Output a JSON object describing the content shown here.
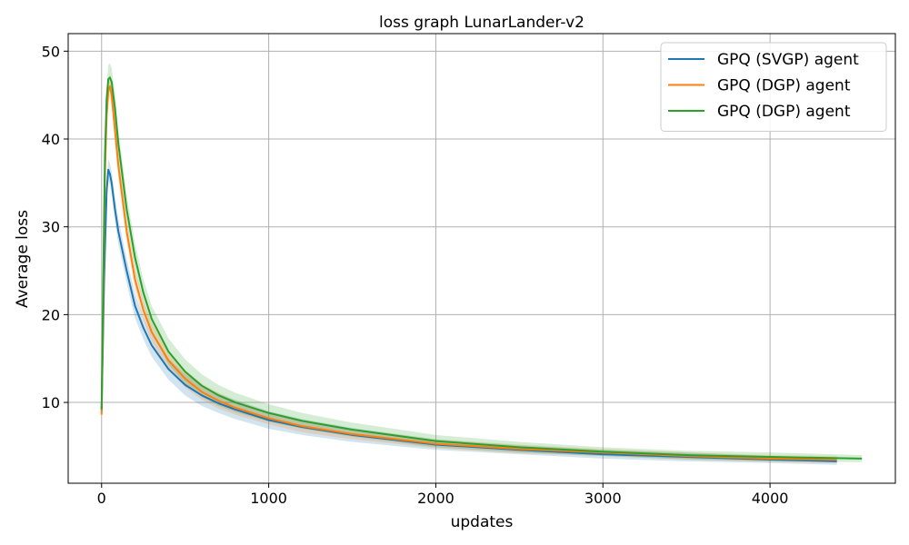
{
  "chart_data": {
    "type": "line",
    "title": "loss graph LunarLander-v2",
    "xlabel": "updates",
    "ylabel": "Average loss",
    "xlim": [
      -200,
      4750
    ],
    "ylim": [
      0.8,
      52
    ],
    "xticks": [
      0,
      1000,
      2000,
      3000,
      4000
    ],
    "xtick_labels": [
      "0",
      "1000",
      "2000",
      "3000",
      "4000"
    ],
    "yticks": [
      10,
      20,
      30,
      40,
      50
    ],
    "ytick_labels": [
      "10",
      "20",
      "30",
      "40",
      "50"
    ],
    "grid": true,
    "legend_position": "top-right",
    "series": [
      {
        "name": "GPQ (SVGP) agent",
        "color": "#1f77b4",
        "x": [
          0,
          15,
          30,
          40,
          50,
          60,
          80,
          100,
          150,
          200,
          250,
          300,
          400,
          500,
          600,
          700,
          800,
          1000,
          1200,
          1500,
          2000,
          2500,
          3000,
          3500,
          4000,
          4400
        ],
        "y": [
          9.0,
          24.0,
          34.0,
          36.5,
          36.0,
          35.0,
          32.0,
          29.5,
          25.0,
          21.0,
          18.5,
          16.5,
          13.8,
          12.0,
          10.8,
          9.9,
          9.2,
          8.0,
          7.2,
          6.3,
          5.2,
          4.6,
          4.1,
          3.8,
          3.5,
          3.3
        ],
        "band": [
          0.3,
          0.6,
          1.0,
          1.2,
          1.2,
          1.3,
          1.4,
          1.4,
          1.4,
          1.4,
          1.3,
          1.3,
          1.2,
          1.2,
          1.2,
          1.1,
          1.1,
          1.0,
          0.9,
          0.8,
          0.6,
          0.5,
          0.5,
          0.5,
          0.4,
          0.4
        ]
      },
      {
        "name": "GPQ (DGP) agent",
        "color": "#ff7f0e",
        "x": [
          0,
          10,
          20,
          30,
          40,
          50,
          60,
          80,
          100,
          150,
          200,
          250,
          300,
          400,
          500,
          600,
          700,
          800,
          1000,
          1200,
          1500,
          2000,
          2500,
          3000,
          3500,
          4000,
          4400
        ],
        "y": [
          8.6,
          22.0,
          36.0,
          42.5,
          45.5,
          46.0,
          45.0,
          41.0,
          37.0,
          29.5,
          24.0,
          20.5,
          18.0,
          14.8,
          12.7,
          11.2,
          10.2,
          9.4,
          8.2,
          7.3,
          6.4,
          5.3,
          4.7,
          4.3,
          3.9,
          3.6,
          3.5
        ],
        "band": [
          0.2,
          0.8,
          1.2,
          1.4,
          1.4,
          1.4,
          1.4,
          1.3,
          1.3,
          1.2,
          1.2,
          1.1,
          1.1,
          1.0,
          1.0,
          0.9,
          0.9,
          0.8,
          0.7,
          0.7,
          0.6,
          0.5,
          0.5,
          0.4,
          0.4,
          0.4,
          0.4
        ]
      },
      {
        "name": "GPQ (DGP) agent",
        "color": "#2ca02c",
        "x": [
          0,
          10,
          20,
          30,
          40,
          50,
          60,
          80,
          100,
          150,
          200,
          250,
          300,
          400,
          500,
          600,
          700,
          800,
          1000,
          1200,
          1500,
          2000,
          2500,
          3000,
          3500,
          4000,
          4550
        ],
        "y": [
          9.2,
          24.0,
          38.0,
          44.5,
          46.8,
          47.0,
          46.5,
          43.5,
          39.5,
          32.0,
          26.5,
          22.5,
          19.5,
          15.8,
          13.5,
          11.9,
          10.8,
          10.0,
          8.8,
          7.9,
          6.9,
          5.6,
          4.9,
          4.4,
          4.0,
          3.8,
          3.6
        ],
        "band": [
          0.3,
          0.8,
          1.2,
          1.4,
          1.6,
          1.6,
          1.6,
          1.6,
          1.6,
          1.6,
          1.6,
          1.5,
          1.5,
          1.5,
          1.4,
          1.3,
          1.2,
          1.1,
          1.0,
          0.9,
          0.8,
          0.7,
          0.6,
          0.5,
          0.5,
          0.5,
          0.4
        ]
      }
    ]
  }
}
